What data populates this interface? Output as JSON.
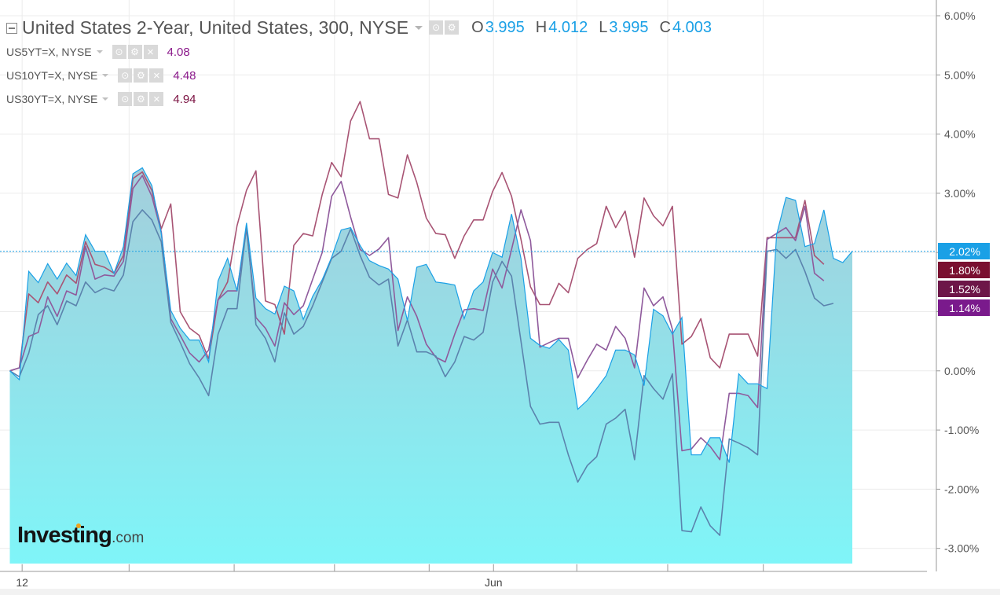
{
  "header": {
    "title": "United States 2-Year, United States, 300, NYSE",
    "ohlc": [
      {
        "key": "O",
        "value": "3.995"
      },
      {
        "key": "H",
        "value": "4.012"
      },
      {
        "key": "L",
        "value": "3.995"
      },
      {
        "key": "C",
        "value": "4.003"
      }
    ],
    "buttons": {
      "visibility": "⊙",
      "settings": "⚙",
      "remove": "×"
    }
  },
  "legend": [
    {
      "name": "US5YT=X, NYSE",
      "value": "4.08",
      "color": "#8b1a8b"
    },
    {
      "name": "US10YT=X, NYSE",
      "value": "4.48",
      "color": "#8b1a8b"
    },
    {
      "name": "US30YT=X, NYSE",
      "value": "4.94",
      "color": "#7a1040"
    }
  ],
  "logo": {
    "main": "Investing",
    "suffix": ".com"
  },
  "colors": {
    "main_line": "#1aa0e6",
    "fill_top": "#a4cedb",
    "fill_bottom": "#7ff5f8",
    "us5": "#5b83ad",
    "us10": "#8f5a9c",
    "us30": "#a85474",
    "grid": "#ececec",
    "axis_text": "#555555"
  },
  "chart_data": {
    "type": "area",
    "y_unit": "%",
    "ylim": [
      -3.3,
      6.3
    ],
    "y_ticks": [
      "6.00%",
      "5.00%",
      "4.00%",
      "3.00%",
      "2.00%",
      "1.00%",
      "0.00%",
      "-1.00%",
      "-2.00%",
      "-3.00%"
    ],
    "y_tick_values": [
      6,
      5,
      4,
      3,
      2,
      1,
      0,
      -1,
      -2,
      -3
    ],
    "x_labels": [
      {
        "index": 1.3,
        "label": "12"
      },
      {
        "index": 51.1,
        "label": "Jun"
      }
    ],
    "x_tick_indices": [
      1.3,
      12.6,
      23.7,
      34.3,
      44.3,
      51.1,
      59.9,
      69.5,
      79.6
    ],
    "grid": true,
    "price_labels": [
      {
        "label": "2.02%",
        "value": 2.02,
        "color": "#1aa0e6"
      },
      {
        "label": "1.80%",
        "value": 1.8,
        "color": "#7a1030"
      },
      {
        "label": "1.52%",
        "value": 1.52,
        "color": "#6d1648"
      },
      {
        "label": "1.14%",
        "value": 1.14,
        "color": "#7a1a8c"
      }
    ],
    "series": [
      {
        "name": "United States 2-Year",
        "values": [
          0,
          -0.15,
          1.68,
          1.49,
          1.81,
          1.55,
          1.82,
          1.61,
          2.3,
          2.02,
          2.02,
          1.65,
          2.1,
          3.33,
          3.43,
          3.13,
          2.32,
          1.02,
          0.72,
          0.52,
          0.52,
          0.15,
          1.52,
          1.9,
          1.35,
          2.5,
          1.23,
          1.05,
          0.96,
          1.43,
          1.35,
          0.87,
          1.26,
          1.54,
          1.92,
          2.38,
          2.42,
          2.12,
          1.86,
          1.78,
          1.72,
          1.55,
          0.85,
          1.75,
          1.8,
          1.5,
          1.48,
          1.45,
          0.88,
          1.35,
          1.5,
          2,
          1.92,
          2.65,
          1.9,
          0.55,
          0.43,
          0.38,
          0.53,
          0.35,
          -0.65,
          -0.5,
          -0.3,
          -0.08,
          0.35,
          0.35,
          0.27,
          -0.25,
          1.04,
          0.93,
          0.62,
          0.9,
          -1.42,
          -1.42,
          -1.13,
          -1.13,
          -1.55,
          -0.05,
          -0.22,
          -0.22,
          -0.3,
          2.3,
          2.93,
          2.88,
          2.1,
          2.15,
          2.72,
          1.9,
          1.83,
          2.02
        ]
      },
      {
        "name": "US5YT=X, NYSE",
        "values": [
          0,
          -0.1,
          0.3,
          0.95,
          1.1,
          0.78,
          1.18,
          1.1,
          1.5,
          1.32,
          1.4,
          1.35,
          1.62,
          2.52,
          2.72,
          2.55,
          2.18,
          0.82,
          0.48,
          0.12,
          -0.12,
          -0.42,
          0.62,
          1.05,
          1.05,
          2.45,
          0.78,
          0.55,
          0.15,
          0.98,
          0.62,
          0.75,
          1.1,
          1.5,
          1.9,
          2.02,
          2.4,
          1.95,
          1.58,
          1.45,
          1.55,
          0.42,
          0.86,
          0.32,
          0.32,
          0.25,
          -0.1,
          0.15,
          0.58,
          0.52,
          0.65,
          1.5,
          1.85,
          1.6,
          0.5,
          -0.6,
          -0.9,
          -0.87,
          -0.87,
          -1.42,
          -1.88,
          -1.6,
          -1.45,
          -0.9,
          -0.8,
          -0.65,
          -1.5,
          -0.08,
          -0.3,
          -0.48,
          -0.05,
          -2.7,
          -2.72,
          -2.3,
          -2.62,
          -2.78,
          -1.15,
          -1.22,
          -1.3,
          -1.42,
          2.02,
          2.05,
          1.9,
          2.05,
          1.68,
          1.23,
          1.1,
          1.14
        ]
      },
      {
        "name": "US10YT=X, NYSE",
        "values": [
          0,
          0.05,
          0.58,
          0.65,
          1.25,
          0.92,
          1.35,
          1.28,
          2.1,
          1.55,
          1.62,
          1.6,
          1.85,
          3.08,
          3.3,
          2.95,
          2.35,
          0.88,
          0.6,
          0.3,
          0.15,
          0.35,
          1.2,
          1.35,
          1.35,
          2.4,
          0.9,
          0.72,
          0.42,
          1.15,
          0.95,
          1.1,
          1.55,
          2,
          2.95,
          3.2,
          2.6,
          2.05,
          1.95,
          2.06,
          2.25,
          0.68,
          1.25,
          0.92,
          0.45,
          0.23,
          0.15,
          0.62,
          1.03,
          1.05,
          1.02,
          1.72,
          1.4,
          2.05,
          2.72,
          2.2,
          0.4,
          0.48,
          0.55,
          0.55,
          -0.12,
          0.18,
          0.45,
          0.35,
          0.75,
          0.55,
          0.05,
          1.4,
          1.1,
          1.25,
          0.7,
          -1.35,
          -1.32,
          -1.13,
          -1.28,
          -1.5,
          -0.38,
          -0.38,
          -0.42,
          -0.62,
          2.22,
          2.32,
          2.42,
          2.2,
          2.78,
          1.65,
          1.52
        ]
      },
      {
        "name": "US30YT=X, NYSE",
        "values": [
          0,
          0.05,
          1.3,
          1.15,
          1.5,
          1.3,
          1.62,
          1.48,
          2.18,
          1.8,
          1.75,
          1.65,
          1.95,
          3.25,
          3.36,
          3.05,
          2.4,
          2.82,
          1,
          0.72,
          0.6,
          0.2,
          1.2,
          1.5,
          2.45,
          3.05,
          3.38,
          1.18,
          1.12,
          0.62,
          2.12,
          2.32,
          2.28,
          2.98,
          3.52,
          3.28,
          4.22,
          4.55,
          3.92,
          3.92,
          2.98,
          2.92,
          3.65,
          3.18,
          2.58,
          2.32,
          2.3,
          1.9,
          2.28,
          2.55,
          2.55,
          3.03,
          3.35,
          2.95,
          2.22,
          1.42,
          1.12,
          1.12,
          1.48,
          1.32,
          1.9,
          2.05,
          2.15,
          2.78,
          2.42,
          2.7,
          1.92,
          2.92,
          2.62,
          2.45,
          2.78,
          0.45,
          0.58,
          0.88,
          0.22,
          0.05,
          0.62,
          0.62,
          0.62,
          0.25,
          2.25,
          2.25,
          2.25,
          2.25,
          2.88,
          1.95,
          1.8
        ]
      }
    ]
  }
}
